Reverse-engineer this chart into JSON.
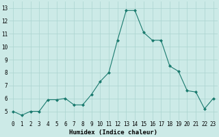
{
  "x": [
    0,
    1,
    2,
    3,
    4,
    5,
    6,
    7,
    8,
    9,
    10,
    11,
    12,
    13,
    14,
    15,
    16,
    17,
    18,
    19,
    20,
    21,
    22,
    23
  ],
  "y": [
    5.0,
    4.7,
    5.0,
    5.0,
    5.9,
    5.9,
    6.0,
    5.5,
    5.5,
    6.3,
    7.3,
    8.0,
    10.5,
    12.8,
    12.8,
    11.1,
    10.5,
    10.5,
    8.5,
    8.1,
    6.6,
    6.5,
    5.2,
    6.0
  ],
  "line_color": "#1a7a6e",
  "marker": "D",
  "marker_size": 2.0,
  "bg_color": "#cceae7",
  "grid_color": "#aad4d0",
  "xlabel": "Humidex (Indice chaleur)",
  "xlim": [
    -0.5,
    23.5
  ],
  "ylim": [
    4.3,
    13.5
  ],
  "yticks": [
    5,
    6,
    7,
    8,
    9,
    10,
    11,
    12,
    13
  ],
  "xticks": [
    0,
    1,
    2,
    3,
    4,
    5,
    6,
    7,
    8,
    9,
    10,
    11,
    12,
    13,
    14,
    15,
    16,
    17,
    18,
    19,
    20,
    21,
    22,
    23
  ],
  "xlabel_fontsize": 6.5,
  "tick_fontsize": 5.5,
  "linewidth": 0.8
}
